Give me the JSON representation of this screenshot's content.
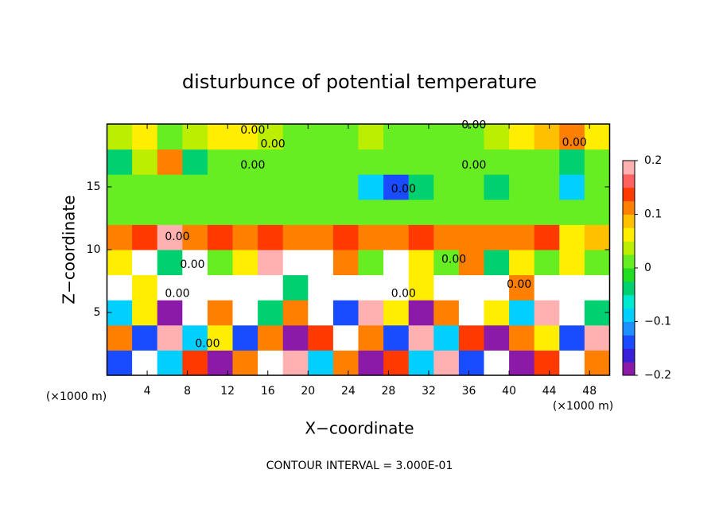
{
  "chart_data": {
    "type": "heatmap",
    "title": "disturbunce of potential temperature",
    "x_label": "X−coordinate",
    "y_label": "Z−coordinate",
    "x_unit_label": "(×1000 m)",
    "y_unit_label": "(×1000 m)",
    "footnote": "CONTOUR INTERVAL = 3.000E-01",
    "xlim": [
      0,
      50
    ],
    "ylim": [
      0,
      20
    ],
    "xticks": [
      4,
      8,
      12,
      16,
      20,
      24,
      28,
      32,
      36,
      40,
      44,
      48
    ],
    "yticks": [
      5,
      10,
      15
    ],
    "xbins": [
      0,
      2.5,
      5,
      7.5,
      10,
      12.5,
      15,
      17.5,
      20,
      22.5,
      25,
      27.5,
      30,
      32.5,
      35,
      37.5,
      40,
      42.5,
      45,
      47.5,
      50
    ],
    "ybins": [
      0,
      2,
      4,
      6,
      8,
      10,
      12,
      14,
      16,
      18,
      20
    ],
    "values": [
      [
        -0.15,
        0.25,
        -0.1,
        0.15,
        -0.2,
        0.1,
        0.25,
        0.2,
        -0.1,
        0.1,
        -0.2,
        0.15,
        -0.1,
        0.2,
        -0.15,
        0.25,
        -0.2,
        0.15,
        0.25,
        0.1
      ],
      [
        0.1,
        -0.15,
        0.2,
        -0.1,
        0.05,
        -0.15,
        0.1,
        -0.2,
        0.15,
        0.25,
        0.1,
        -0.15,
        0.2,
        -0.1,
        0.15,
        -0.2,
        0.1,
        0.05,
        -0.15,
        0.2
      ],
      [
        -0.1,
        0.05,
        -0.2,
        0.25,
        0.1,
        0.25,
        -0.05,
        0.1,
        0.25,
        -0.15,
        0.2,
        0.05,
        -0.2,
        0.1,
        0.25,
        0.05,
        -0.1,
        0.2,
        0.25,
        -0.05
      ],
      [
        0.25,
        0.05,
        0.25,
        0.25,
        0.25,
        0.25,
        0.25,
        -0.05,
        0.25,
        0.25,
        0.25,
        0.25,
        0.05,
        0.25,
        0.25,
        0.25,
        0.1,
        0.25,
        0.25,
        0.25
      ],
      [
        0.05,
        0.25,
        -0.05,
        0.25,
        0.0,
        0.05,
        0.2,
        0.25,
        0.25,
        0.1,
        0.0,
        0.25,
        0.05,
        0.0,
        0.1,
        -0.05,
        0.05,
        0.0,
        0.05,
        0.0
      ],
      [
        0.12,
        0.15,
        0.18,
        0.1,
        0.15,
        0.1,
        0.15,
        0.1,
        0.12,
        0.15,
        0.12,
        0.1,
        0.15,
        0.12,
        0.1,
        0.12,
        0.1,
        0.15,
        0.05,
        0.08
      ],
      [
        0.0,
        0.0,
        0.0,
        0.02,
        0.0,
        0.0,
        0.0,
        0.0,
        0.0,
        0.0,
        0.0,
        0.0,
        0.0,
        0.0,
        0.0,
        0.0,
        0.0,
        0.0,
        0.02,
        0.0
      ],
      [
        0.0,
        0.0,
        0.0,
        0.0,
        0.0,
        0.02,
        0.0,
        0.0,
        0.0,
        0.0,
        -0.1,
        -0.15,
        -0.05,
        0.0,
        0.0,
        -0.05,
        0.0,
        0.0,
        -0.1,
        0.0
      ],
      [
        -0.05,
        0.03,
        0.1,
        -0.05,
        0.0,
        0.0,
        0.0,
        0.0,
        0.0,
        0.0,
        0.0,
        0.0,
        0.0,
        0.0,
        0.0,
        0.0,
        0.0,
        0.02,
        -0.05,
        0.0
      ],
      [
        0.03,
        0.05,
        0.02,
        0.03,
        0.05,
        0.05,
        0.03,
        0.02,
        0.02,
        0.02,
        0.03,
        0.02,
        0.02,
        0.02,
        0.02,
        0.03,
        0.05,
        0.08,
        0.1,
        0.05
      ]
    ],
    "colorbar_ticks": [
      {
        "value": 0.2,
        "label": "0.2"
      },
      {
        "value": 0.1,
        "label": "0.1"
      },
      0,
      {
        "value": -0.1,
        "label": "−0.1"
      },
      {
        "value": -0.2,
        "label": "−0.2"
      }
    ],
    "colorbar_lim": [
      -0.2,
      0.2
    ],
    "colorscale": [
      "#8b1aa8",
      "#3a1fd8",
      "#1a4cff",
      "#1e90ff",
      "#00cfff",
      "#00e8d0",
      "#00d070",
      "#22dd22",
      "#66ee22",
      "#bbee00",
      "#ffee00",
      "#ffc000",
      "#ff8000",
      "#ff3a00",
      "#ff6060",
      "#ffb0b0"
    ],
    "contour_labels": [
      {
        "x": 14.5,
        "y": 19.5,
        "label": "0.00"
      },
      {
        "x": 16.5,
        "y": 18.4,
        "label": "0.00"
      },
      {
        "x": 14.5,
        "y": 16.7,
        "label": "0.00"
      },
      {
        "x": 36.5,
        "y": 16.7,
        "label": "0.00"
      },
      {
        "x": 36.5,
        "y": 19.9,
        "label": "0.00"
      },
      {
        "x": 46.5,
        "y": 18.5,
        "label": "0.00"
      },
      {
        "x": 29.5,
        "y": 14.8,
        "label": "0.00"
      },
      {
        "x": 7.0,
        "y": 11.0,
        "label": "0.00"
      },
      {
        "x": 8.5,
        "y": 8.8,
        "label": "0.00"
      },
      {
        "x": 34.5,
        "y": 9.2,
        "label": "0.00"
      },
      {
        "x": 41.0,
        "y": 7.2,
        "label": "0.00"
      },
      {
        "x": 7.0,
        "y": 6.5,
        "label": "0.00"
      },
      {
        "x": 29.5,
        "y": 6.5,
        "label": "0.00"
      },
      {
        "x": 10.0,
        "y": 2.5,
        "label": "0.00"
      }
    ]
  }
}
